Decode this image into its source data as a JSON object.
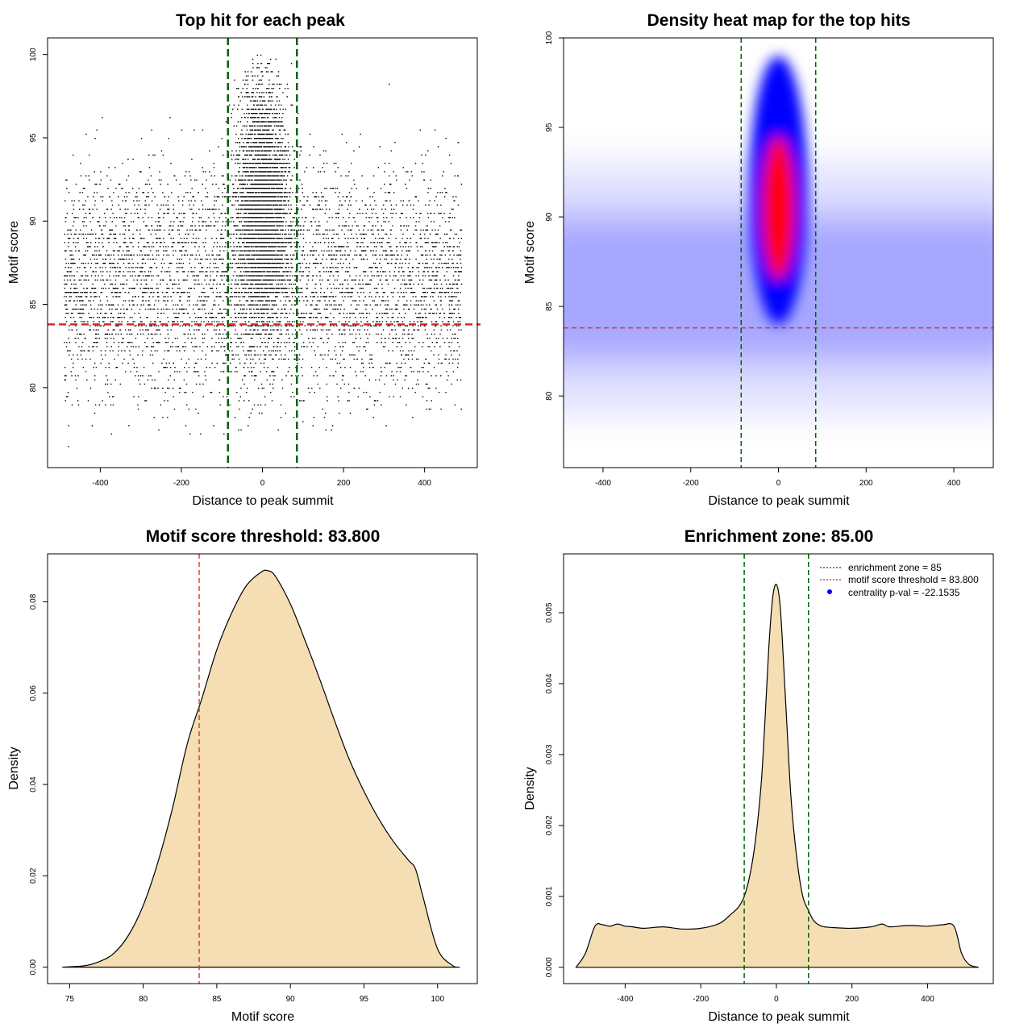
{
  "colors": {
    "threshold": "#d62728",
    "zone": "#006400",
    "fill": "#f5deb3",
    "heat_low": "#ffffff",
    "heat_mid": "#0000ff",
    "heat_high": "#ff0000",
    "centrality": "#0000ff"
  },
  "chart_data": [
    {
      "type": "scatter",
      "title": "Top hit for each peak",
      "xlabel": "Distance to peak summit",
      "ylabel": "Motif score",
      "xlim": [
        -530,
        530
      ],
      "ylim": [
        75.2,
        101
      ],
      "xticks": [
        "-400",
        "-200",
        "0",
        "200",
        "400"
      ],
      "xtick_values": [
        -400,
        -200,
        0,
        200,
        400
      ],
      "yticks": [
        "80",
        "85",
        "90",
        "95",
        "100"
      ],
      "ytick_values": [
        80,
        85,
        90,
        95,
        100
      ],
      "threshold": 83.8,
      "enrichment_zone": [
        -85,
        85
      ],
      "description_of_points": {
        "background_x_range": [
          -490,
          490
        ],
        "background_score_center": 86.5,
        "background_score_spread": 3.4,
        "central_peak_x_spread": 32,
        "central_peak_score_center": 91,
        "central_peak_score_spread": 3.8,
        "score_max": 100
      }
    },
    {
      "type": "heatmap",
      "title": "Density heat map for the top hits",
      "xlabel": "Distance to peak summit",
      "ylabel": "Motif score",
      "xlim": [
        -490,
        490
      ],
      "ylim": [
        76,
        100
      ],
      "xticks": [
        "-400",
        "-200",
        "0",
        "200",
        "400"
      ],
      "xtick_values": [
        -400,
        -200,
        0,
        200,
        400
      ],
      "yticks": [
        "80",
        "85",
        "90",
        "95",
        "100"
      ],
      "ytick_values": [
        80,
        85,
        90,
        95,
        100
      ],
      "threshold": 83.8,
      "enrichment_zone": [
        -85,
        85
      ],
      "hotspot": {
        "x": 0,
        "score": 90
      }
    },
    {
      "type": "area",
      "title": "Motif score threshold: 83.800",
      "xlabel": "Motif score",
      "ylabel": "Density",
      "xlim": [
        73.5,
        102.7
      ],
      "ylim": [
        -0.0036,
        0.0905
      ],
      "xticks": [
        "75",
        "80",
        "85",
        "90",
        "95",
        "100"
      ],
      "xtick_values": [
        75,
        80,
        85,
        90,
        95,
        100
      ],
      "yticks": [
        "0.00",
        "0.02",
        "0.04",
        "0.06",
        "0.08"
      ],
      "ytick_values": [
        0,
        0.02,
        0.04,
        0.06,
        0.08
      ],
      "threshold": 83.8,
      "x": [
        74.5,
        76,
        77,
        78,
        79,
        80,
        81,
        82,
        83,
        84,
        85,
        86,
        87,
        88,
        88.5,
        89,
        90,
        91,
        92,
        93,
        94,
        95,
        96,
        97,
        98,
        98.5,
        99,
        100,
        101,
        101.5
      ],
      "y": [
        0,
        0.0003,
        0.0012,
        0.003,
        0.007,
        0.0135,
        0.023,
        0.035,
        0.049,
        0.059,
        0.0695,
        0.0775,
        0.0835,
        0.0865,
        0.0868,
        0.0855,
        0.0795,
        0.0715,
        0.063,
        0.054,
        0.0455,
        0.0385,
        0.0325,
        0.0275,
        0.0235,
        0.0215,
        0.0155,
        0.004,
        0.0004,
        0
      ]
    },
    {
      "type": "area",
      "title": "Enrichment zone: 85.00",
      "xlabel": "Distance to peak summit",
      "ylabel": "Density",
      "xlim": [
        -563,
        574
      ],
      "ylim": [
        -0.00023,
        0.00583
      ],
      "xticks": [
        "-400",
        "-200",
        "0",
        "200",
        "400"
      ],
      "xtick_values": [
        -400,
        -200,
        0,
        200,
        400
      ],
      "yticks": [
        "0.000",
        "0.001",
        "0.002",
        "0.003",
        "0.004",
        "0.005"
      ],
      "ytick_values": [
        0,
        0.001,
        0.002,
        0.003,
        0.004,
        0.005
      ],
      "enrichment_zone": [
        -85,
        85
      ],
      "x": [
        -530,
        -505,
        -480,
        -460,
        -440,
        -420,
        -400,
        -380,
        -350,
        -300,
        -250,
        -200,
        -150,
        -120,
        -100,
        -85,
        -70,
        -55,
        -40,
        -30,
        -20,
        -10,
        0,
        10,
        20,
        30,
        40,
        55,
        70,
        85,
        100,
        120,
        150,
        200,
        250,
        280,
        300,
        350,
        400,
        440,
        470,
        490,
        510,
        535
      ],
      "y": [
        0,
        0.0002,
        0.00058,
        0.0006,
        0.00058,
        0.00061,
        0.00058,
        0.00057,
        0.00055,
        0.00057,
        0.00054,
        0.00055,
        0.00062,
        0.00075,
        0.00085,
        0.001,
        0.0013,
        0.0018,
        0.0026,
        0.0035,
        0.0045,
        0.0052,
        0.0054,
        0.0051,
        0.0042,
        0.0032,
        0.0023,
        0.0015,
        0.001,
        0.0008,
        0.00065,
        0.00058,
        0.00056,
        0.00055,
        0.00057,
        0.00061,
        0.00057,
        0.00059,
        0.00058,
        0.0006,
        0.00058,
        0.0002,
        4e-05,
        0
      ],
      "legend": [
        {
          "label": "enrichment zone = 85",
          "style": "dotted",
          "color_key": "zone"
        },
        {
          "label": "motif score threshold = 83.800",
          "style": "dotted",
          "color_key": "threshold"
        },
        {
          "label": "centrality p-val = -22.1535",
          "style": "point",
          "color_key": "centrality"
        }
      ],
      "legend_position": "top-right"
    }
  ]
}
